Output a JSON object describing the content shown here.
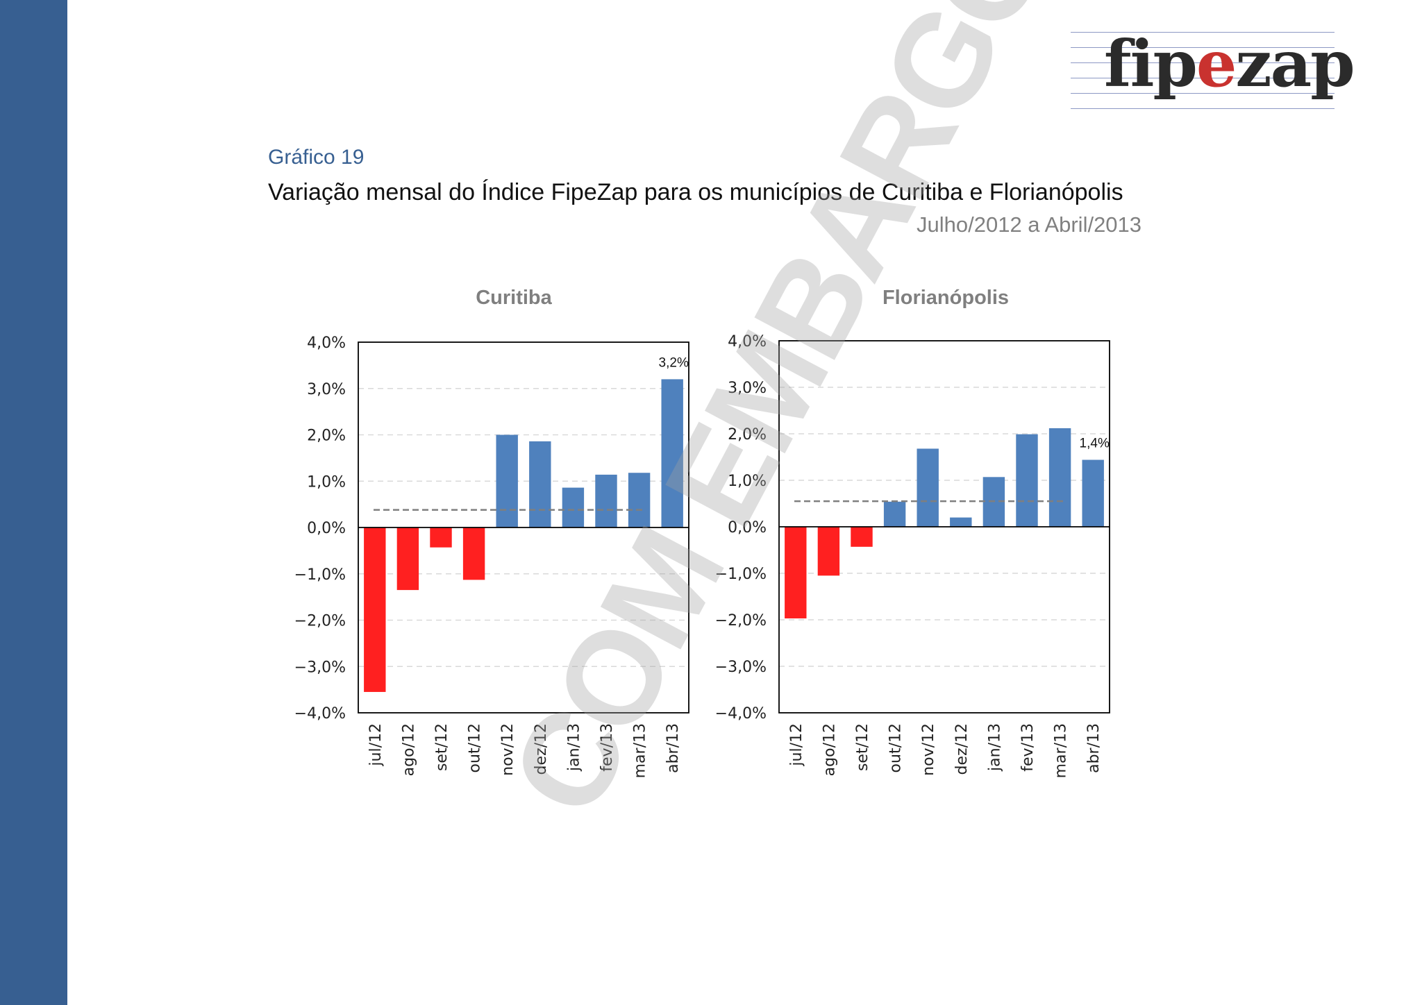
{
  "logo": {
    "part1": "fip",
    "part2": "e",
    "part3": "zap"
  },
  "figure_label": "Gráfico 19",
  "figure_title": "Variação mensal do Índice FipeZap para os municípios de Curitiba e Florianópolis",
  "figure_subtitle": "Julho/2012 a Abril/2013",
  "watermark": "COM EMBARGO",
  "colors": {
    "sidebar": "#375f91",
    "positive": "#4f81bd",
    "negative": "#ff2020",
    "average_line": "#7f7f7f"
  },
  "chart_data": [
    {
      "type": "bar",
      "title": "Curitiba",
      "categories": [
        "jul/12",
        "ago/12",
        "set/12",
        "out/12",
        "nov/12",
        "dez/12",
        "jan/13",
        "fev/13",
        "mar/13",
        "abr/13"
      ],
      "values": [
        -3.55,
        -1.35,
        -0.43,
        -1.13,
        2.0,
        1.86,
        0.86,
        1.14,
        1.18,
        3.2
      ],
      "data_labels": {
        "9": "3,2%"
      },
      "average_line": 0.38,
      "ylim": [
        -4,
        4
      ],
      "yticks": [
        "4,0%",
        "3,0%",
        "2,0%",
        "1,0%",
        "0,0%",
        "−1,0%",
        "−2,0%",
        "−3,0%",
        "−4,0%"
      ],
      "grid": true
    },
    {
      "type": "bar",
      "title": "Florianópolis",
      "categories": [
        "jul/12",
        "ago/12",
        "set/12",
        "out/12",
        "nov/12",
        "dez/12",
        "jan/13",
        "fev/13",
        "mar/13",
        "abr/13"
      ],
      "values": [
        -1.97,
        -1.05,
        -0.43,
        0.54,
        1.68,
        0.2,
        1.07,
        1.99,
        2.12,
        1.44
      ],
      "data_labels": {
        "9": "1,4%"
      },
      "average_line": 0.55,
      "ylim": [
        -4,
        4
      ],
      "yticks": [
        "4,0%",
        "3,0%",
        "2,0%",
        "1,0%",
        "0,0%",
        "−1,0%",
        "−2,0%",
        "−3,0%",
        "−4,0%"
      ],
      "grid": true
    }
  ]
}
